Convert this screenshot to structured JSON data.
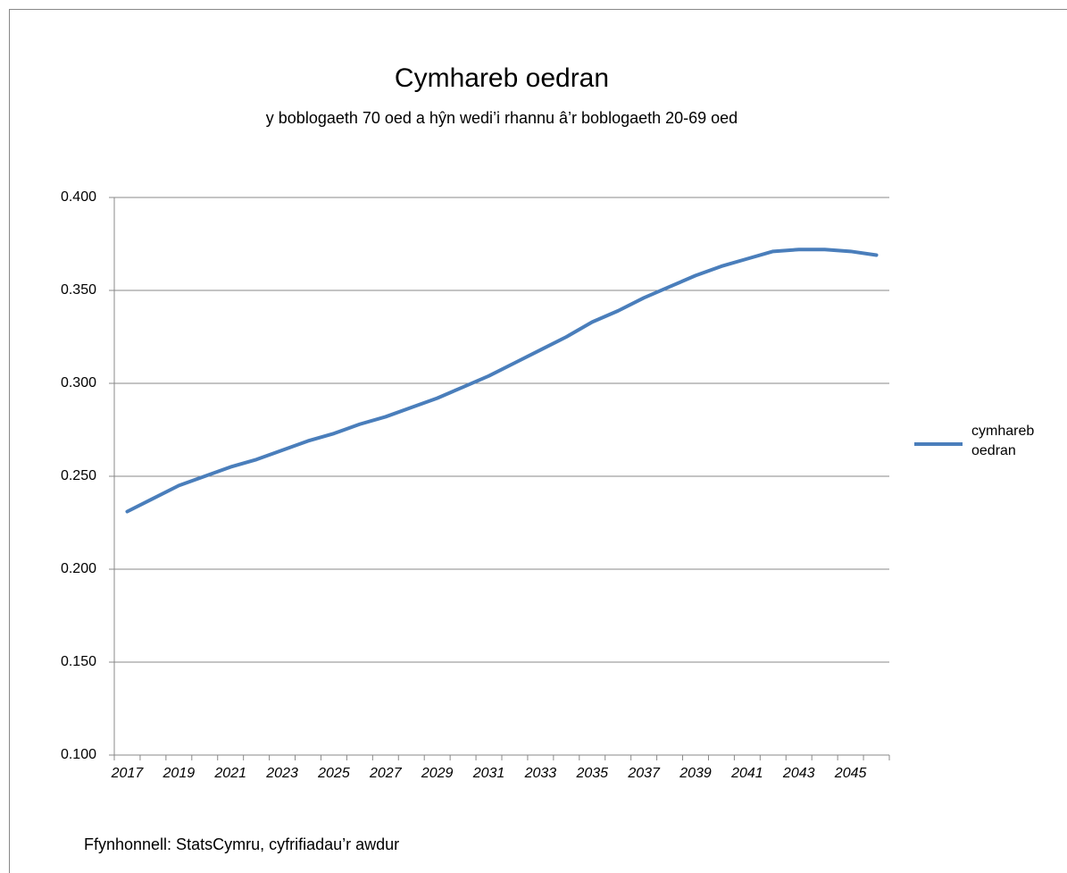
{
  "chart_data": {
    "type": "line",
    "title": "Cymhareb oedran",
    "subtitle": "y boblogaeth 70 oed a hŷn wedi’i rhannu â’r boblogaeth 20-69 oed",
    "source": "Ffynhonnell: StatsCymru, cyfrifiadau’r awdur",
    "categories": [
      "2017",
      null,
      "2019",
      null,
      "2021",
      null,
      "2023",
      null,
      "2025",
      null,
      "2027",
      null,
      "2029",
      null,
      "2031",
      null,
      "2033",
      null,
      "2035",
      null,
      "2037",
      null,
      "2039",
      null,
      "2041",
      null,
      "2043",
      null,
      "2045",
      null
    ],
    "series": [
      {
        "name": "cymhareb oedran",
        "color": "#4a7ebb",
        "values": [
          0.231,
          0.238,
          0.245,
          0.25,
          0.255,
          0.259,
          0.264,
          0.269,
          0.273,
          0.278,
          0.282,
          0.287,
          0.292,
          0.298,
          0.304,
          0.311,
          0.318,
          0.325,
          0.333,
          0.339,
          0.346,
          0.352,
          0.358,
          0.363,
          0.367,
          0.371,
          0.372,
          0.372,
          0.371,
          0.369
        ]
      }
    ],
    "ylim": [
      0.1,
      0.4
    ],
    "yticks": [
      {
        "value": 0.1,
        "label": "0.100"
      },
      {
        "value": 0.15,
        "label": "0.150"
      },
      {
        "value": 0.2,
        "label": "0.200"
      },
      {
        "value": 0.25,
        "label": "0.250"
      },
      {
        "value": 0.3,
        "label": "0.300"
      },
      {
        "value": 0.35,
        "label": "0.350"
      },
      {
        "value": 0.4,
        "label": "0.400"
      }
    ],
    "grid": true,
    "legend": "right"
  }
}
